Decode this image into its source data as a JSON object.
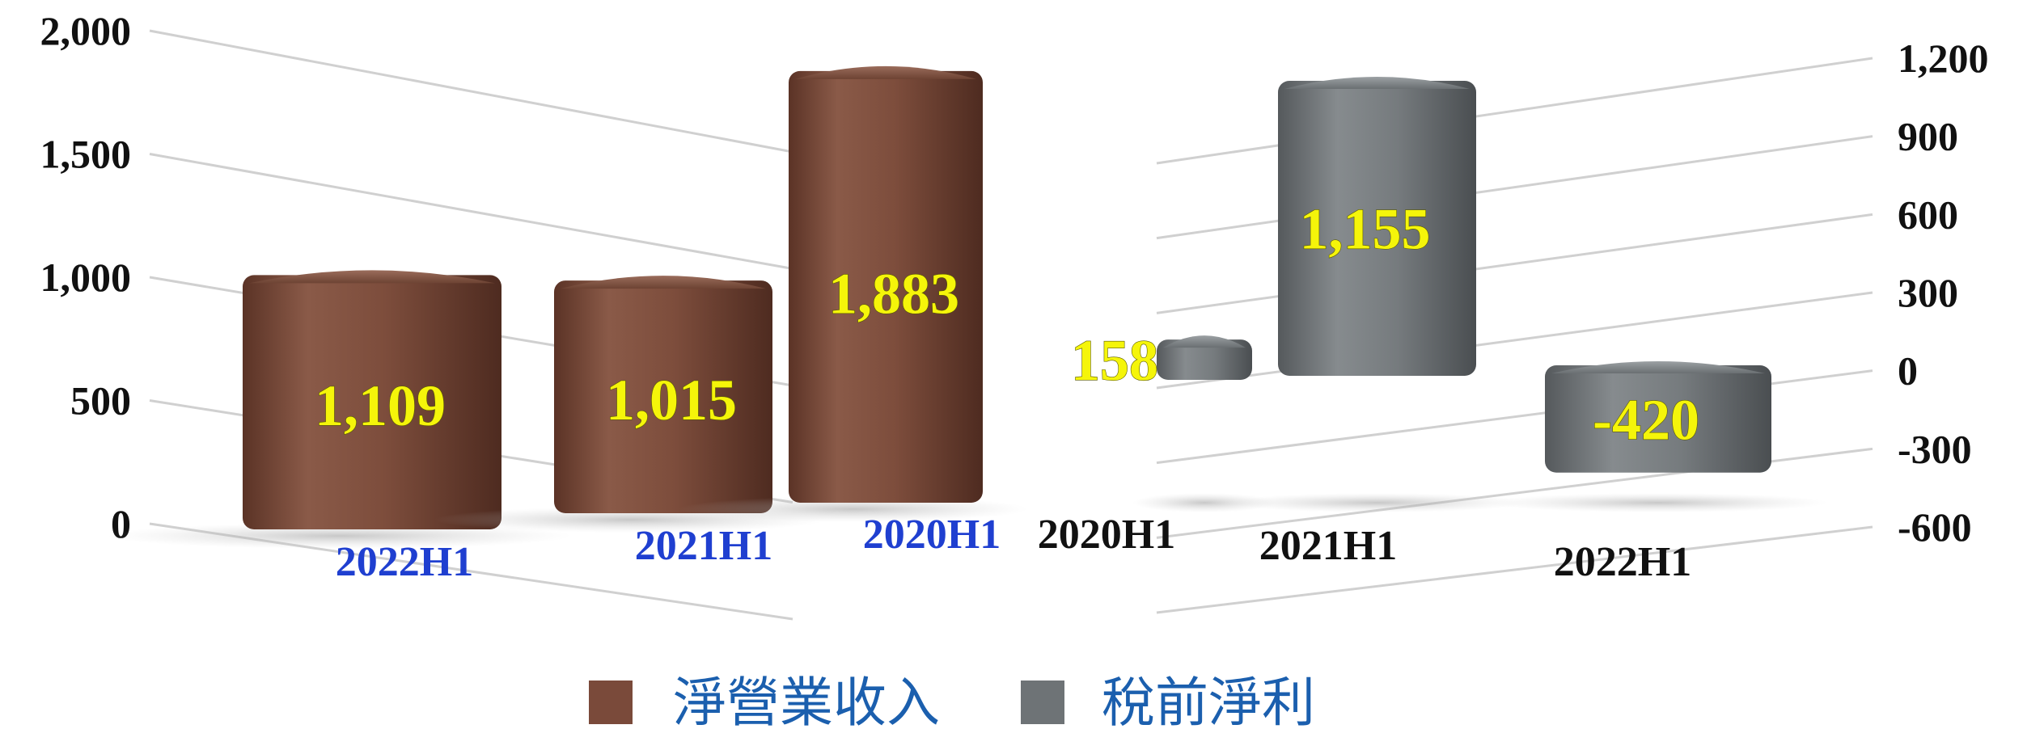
{
  "chart_data": [
    {
      "type": "bar",
      "title": "",
      "categories": [
        "2022H1",
        "2021H1",
        "2020H1"
      ],
      "series": [
        {
          "name": "淨營業收入",
          "values": [
            1109,
            1015,
            1883
          ]
        }
      ],
      "y_ticks": [
        "2,000",
        "1,500",
        "1,000",
        "500",
        "0"
      ],
      "ylim": [
        0,
        2000
      ],
      "value_labels": [
        "1,109",
        "1,015",
        "1,883"
      ],
      "bar_color": "#7a4a3a",
      "category_color": "#1f3fd0",
      "grid": true,
      "style": "3d-textured"
    },
    {
      "type": "bar",
      "title": "",
      "categories": [
        "2020H1",
        "2021H1",
        "2022H1"
      ],
      "series": [
        {
          "name": "稅前淨利",
          "values": [
            158,
            1155,
            -420
          ]
        }
      ],
      "y_ticks": [
        "1,200",
        "900",
        "600",
        "300",
        "0",
        "-300",
        "-600"
      ],
      "ylim": [
        -600,
        1200
      ],
      "value_labels": [
        "158",
        "1,155",
        "-420"
      ],
      "bar_color": "#6e7376",
      "category_color": "#111111",
      "grid": true,
      "style": "3d-textured"
    }
  ],
  "legend": {
    "placement": "bottom-center",
    "items": [
      {
        "label": "淨營業收入",
        "color": "#7a4a3a"
      },
      {
        "label": "稅前淨利",
        "color": "#6e7376"
      }
    ]
  }
}
